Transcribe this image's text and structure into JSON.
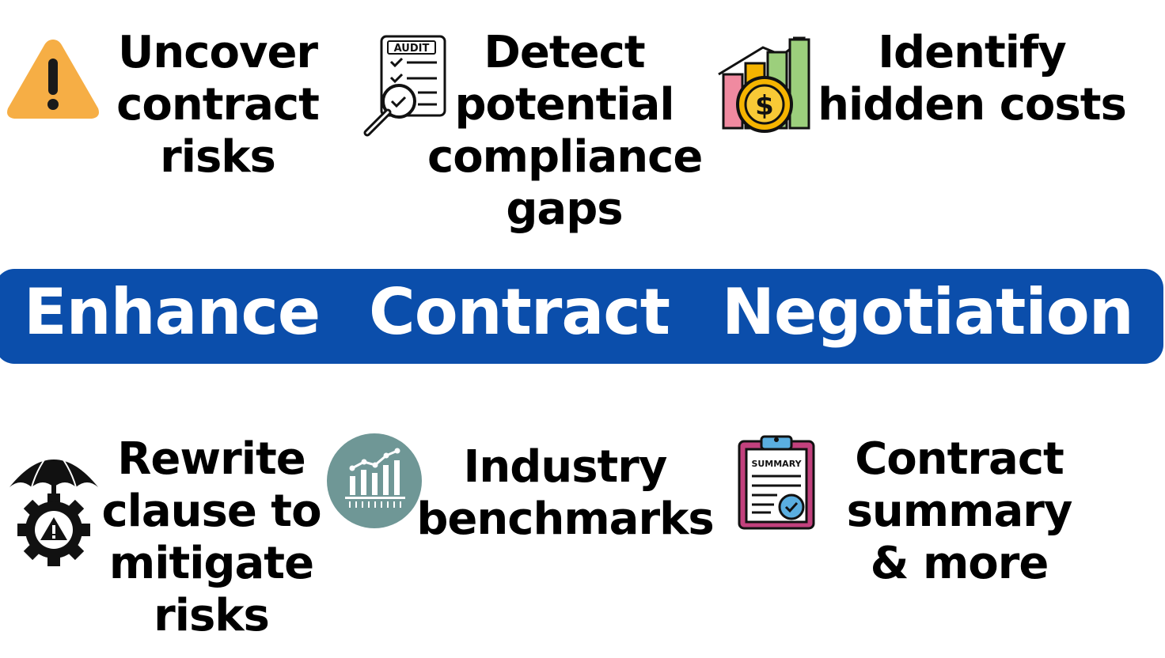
{
  "features": {
    "uncover": {
      "lines": [
        "Uncover",
        "contract",
        "risks"
      ],
      "icon": "warning-icon"
    },
    "detect": {
      "lines": [
        "Detect",
        "potential",
        "compliance",
        "gaps"
      ],
      "icon": "audit-icon",
      "icon_text": "AUDIT"
    },
    "identify": {
      "lines": [
        "Identify",
        "hidden costs"
      ],
      "icon": "cost-chart-icon",
      "icon_symbol": "$"
    },
    "rewrite": {
      "lines": [
        "Rewrite",
        "clause to",
        "mitigate",
        "risks"
      ],
      "icon": "risk-umbrella-gear-icon"
    },
    "benchmarks": {
      "lines": [
        "Industry",
        "benchmarks"
      ],
      "icon": "benchmark-chart-icon"
    },
    "summary": {
      "lines": [
        "Contract",
        "summary",
        "& more"
      ],
      "icon": "summary-clipboard-icon",
      "icon_text": "SUMMARY"
    }
  },
  "banner": {
    "words": [
      "Enhance",
      "Contract",
      "Negotiation"
    ]
  },
  "colors": {
    "banner_bg": "#0b4eab",
    "warning": "#f6ae45",
    "benchmark_circle": "#6f9796",
    "summary_frame": "#c2417d",
    "check_blue": "#5aaee0",
    "coin": "#f5b400"
  }
}
